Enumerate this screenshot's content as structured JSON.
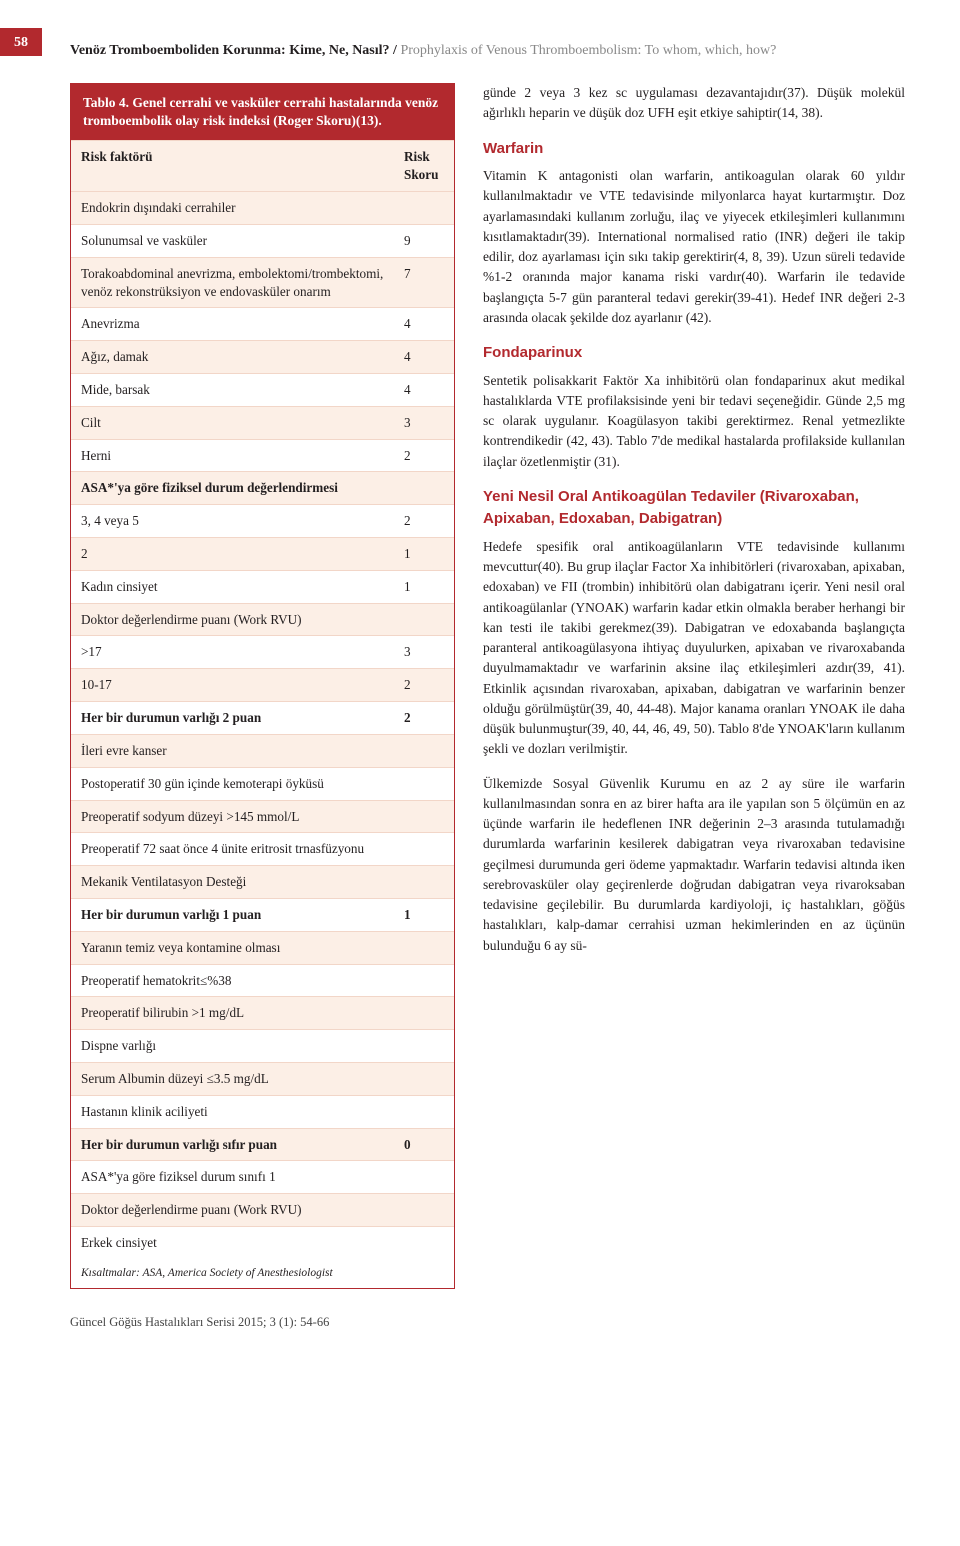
{
  "page_number": "58",
  "header": {
    "title_bold": "Venöz Tromboemboliden Korunma: Kime, Ne, Nasıl? /",
    "title_light": " Prophylaxis of Venous Thromboembolism: To whom, which, how?"
  },
  "table": {
    "caption": "Tablo 4. Genel cerrahi ve vasküler cerrahi hastalarında venöz tromboembolik olay risk indeksi (Roger Skoru)(13).",
    "header_left": "Risk faktörü",
    "header_right": "Risk Skoru",
    "rows": [
      {
        "label": "Endokrin dışındaki cerrahiler",
        "score": "",
        "bold": false
      },
      {
        "label": "Solunumsal ve vasküler",
        "score": "9",
        "bold": false
      },
      {
        "label": "Torakoabdominal anevrizma, embolektomi/trombektomi, venöz rekonstrüksiyon ve endovasküler onarım",
        "score": "7",
        "bold": false
      },
      {
        "label": "Anevrizma",
        "score": "4",
        "bold": false
      },
      {
        "label": "Ağız, damak",
        "score": "4",
        "bold": false
      },
      {
        "label": "Mide, barsak",
        "score": "4",
        "bold": false
      },
      {
        "label": "Cilt",
        "score": "3",
        "bold": false
      },
      {
        "label": "Herni",
        "score": "2",
        "bold": false
      },
      {
        "label": "ASA*'ya göre fiziksel durum değerlendirmesi",
        "score": "",
        "bold": true
      },
      {
        "label": "3, 4 veya 5",
        "score": "2",
        "bold": false
      },
      {
        "label": "2",
        "score": "1",
        "bold": false
      },
      {
        "label": "Kadın cinsiyet",
        "score": "1",
        "bold": false
      },
      {
        "label": "Doktor değerlendirme puanı (Work RVU)",
        "score": "",
        "bold": false
      },
      {
        "label": ">17",
        "score": "3",
        "bold": false
      },
      {
        "label": "10-17",
        "score": "2",
        "bold": false
      },
      {
        "label": "Her bir durumun varlığı 2 puan",
        "score": "2",
        "bold": true
      },
      {
        "label": "İleri evre kanser",
        "score": "",
        "bold": false
      },
      {
        "label": "Postoperatif  30 gün içinde kemoterapi öyküsü",
        "score": "",
        "bold": false
      },
      {
        "label": "Preoperatif sodyum düzeyi >145 mmol/L",
        "score": "",
        "bold": false
      },
      {
        "label": "Preoperatif 72 saat önce 4 ünite eritrosit trnasfüzyonu",
        "score": "",
        "bold": false
      },
      {
        "label": "Mekanik Ventilatasyon Desteği",
        "score": "",
        "bold": false
      },
      {
        "label": "Her bir durumun varlığı 1 puan",
        "score": "1",
        "bold": true
      },
      {
        "label": "Yaranın temiz veya kontamine olması",
        "score": "",
        "bold": false
      },
      {
        "label": "Preoperatif hematokrit≤%38",
        "score": "",
        "bold": false
      },
      {
        "label": "Preoperatif bilirubin >1 mg/dL",
        "score": "",
        "bold": false
      },
      {
        "label": "Dispne varlığı",
        "score": "",
        "bold": false
      },
      {
        "label": "Serum Albumin düzeyi ≤3.5 mg/dL",
        "score": "",
        "bold": false
      },
      {
        "label": "Hastanın klinik aciliyeti",
        "score": "",
        "bold": false
      },
      {
        "label": "Her bir durumun varlığı sıfır puan",
        "score": "0",
        "bold": true
      },
      {
        "label": "ASA*'ya göre fiziksel durum sınıfı 1",
        "score": "",
        "bold": false
      },
      {
        "label": "Doktor değerlendirme puanı (Work RVU)",
        "score": "",
        "bold": false
      },
      {
        "label": "Erkek cinsiyet",
        "score": "",
        "bold": false
      }
    ],
    "footnote": "Kısaltmalar: ASA, America Society of Anesthesiologist"
  },
  "right": {
    "intro": "günde 2 veya 3 kez sc uygulaması dezavantajıdır(37). Düşük molekül ağırlıklı heparin ve düşük doz UFH eşit etkiye sahiptir(14, 38).",
    "sections": [
      {
        "title": "Warfarin",
        "body": "Vitamin K antagonisti olan warfarin, antikoagulan olarak 60 yıldır kullanılmaktadır ve VTE tedavisinde milyonlarca hayat kurtarmıştır. Doz ayarlamasındaki kullanım zorluğu, ilaç ve yiyecek etkileşimleri kullanımını kısıtlamaktadır(39). International normalised ratio (INR) değeri ile takip edilir, doz ayarlaması için sıkı takip gerektirir(4, 8, 39). Uzun süreli tedavide %1-2 oranında major kanama riski vardır(40). Warfarin ile tedavide başlangıçta 5-7 gün paranteral tedavi gerekir(39-41). Hedef INR değeri 2-3 arasında olacak şekilde doz ayarlanır (42)."
      },
      {
        "title": "Fondaparinux",
        "body": "Sentetik polisakkarit Faktör Xa inhibitörü olan fondaparinux akut medikal hastalıklarda VTE profilaksisinde yeni bir tedavi seçeneğidir. Günde 2,5 mg sc olarak uygulanır. Koagülasyon takibi gerektirmez. Renal yetmezlikte kontrendikedir (42, 43). Tablo 7'de medikal hastalarda profilakside kullanılan ilaçlar özetlenmiştir (31)."
      },
      {
        "title": "Yeni Nesil Oral Antikoagülan Tedaviler (Rivaroxaban, Apixaban, Edoxaban, Dabigatran)",
        "body": "Hedefe spesifik oral antikoagülanların VTE tedavisinde kullanımı mevcuttur(40). Bu grup ilaçlar Factor Xa inhibitörleri (rivaroxaban, apixaban, edoxaban) ve FII (trombin) inhibitörü olan dabigatranı içerir. Yeni nesil oral antikoagülanlar (YNOAK) warfarin kadar etkin olmakla beraber herhangi bir kan testi ile takibi gerekmez(39). Dabigatran ve edoxabanda başlangıçta paranteral antikoagülasyona ihtiyaç duyulurken, apixaban ve rivaroxabanda duyulmamaktadır ve warfarinin aksine ilaç etkileşimleri azdır(39, 41). Etkinlik açısından rivaroxaban, apixaban, dabigatran ve warfarinin benzer olduğu görülmüştür(39, 40, 44-48). Major kanama oranları YNOAK ile daha düşük bulunmuştur(39, 40, 44, 46, 49, 50). Tablo 8'de YNOAK'ların kullanım şekli ve dozları verilmiştir."
      }
    ],
    "closing": "Ülkemizde Sosyal Güvenlik Kurumu en az 2 ay süre ile warfarin kullanılmasından sonra en az birer hafta ara ile yapılan son 5 ölçümün en az üçünde warfarin ile hedeflenen INR değerinin 2–3 arasında tutulamadığı durumlarda warfarinin kesilerek dabigatran veya rivaroxaban tedavisine geçilmesi durumunda geri ödeme yapmaktadır. Warfarin tedavisi altında iken serebrovasküler olay geçirenlerde doğrudan dabigatran veya rivaroksaban tedavisine geçilebilir. Bu durumlarda kardiyoloji, iç hastalıkları, göğüs hastalıkları, kalp-damar cerrahisi uzman hekimlerinden en az üçünün bulunduğu 6 ay sü-"
  },
  "footer": "Güncel Göğüs Hastalıkları Serisi 2015; 3 (1): 54-66",
  "colors": {
    "accent": "#b2292e",
    "table_odd": "#fcefe6",
    "table_border": "#f2d6c8",
    "text": "#231f20",
    "muted": "#888888"
  }
}
